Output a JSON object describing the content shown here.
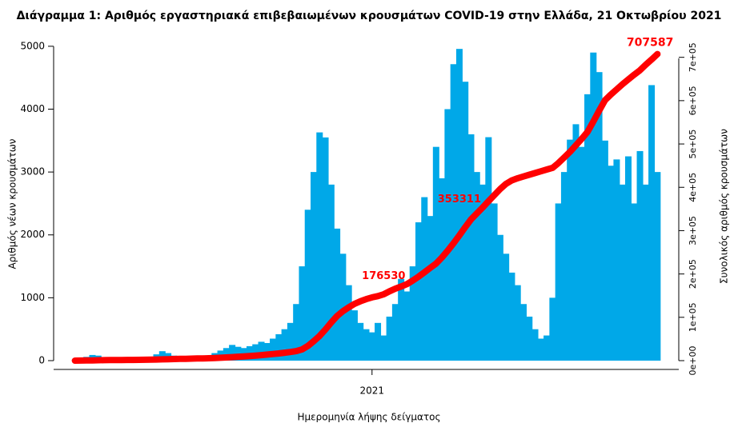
{
  "chart_data": {
    "type": "bar",
    "title": "Διάγραμμα 1: Αριθμός εργαστηριακά επιβεβαιωμένων κρουσμάτων COVID-19 στην Ελλάδα, 21 Οκτωβρίου 2021",
    "xlabel": "Ημερομηνία λήψης δείγματος",
    "ylabel": "Αριθμός νέων κρουσμάτων",
    "y2label": "Συνολικός αριθμός κρουσμάτων",
    "categories": [
      null,
      null,
      null,
      null,
      null,
      null,
      null,
      null,
      null,
      null,
      null,
      null,
      null,
      null,
      null,
      null,
      null,
      null,
      null,
      null,
      null,
      null,
      null,
      null,
      null,
      null,
      null,
      null,
      null,
      null,
      null,
      null,
      null,
      null,
      null,
      null,
      null,
      null,
      null,
      null,
      null,
      null,
      null,
      null,
      null,
      null,
      null,
      null,
      null,
      null,
      null,
      "2021",
      null,
      null,
      null,
      null,
      null,
      null,
      null,
      null,
      null,
      null,
      null,
      null,
      null,
      null,
      null,
      null,
      null,
      null,
      null,
      null,
      null,
      null,
      null,
      null,
      null,
      null,
      null,
      null,
      null,
      null,
      null,
      null,
      null,
      null,
      null,
      null,
      null,
      null,
      null,
      null,
      null,
      null,
      null,
      null,
      null,
      null,
      null,
      null,
      null
    ],
    "ylim": [
      0,
      5100
    ],
    "yticks": [
      0,
      1000,
      2000,
      3000,
      4000,
      5000
    ],
    "y2lim": [
      0,
      740000
    ],
    "y2ticks": [
      {
        "value": 0,
        "label": "0e+00"
      },
      {
        "value": 100000,
        "label": "1e+05"
      },
      {
        "value": 200000,
        "label": "2e+05"
      },
      {
        "value": 300000,
        "label": "3e+05"
      },
      {
        "value": 400000,
        "label": "4e+05"
      },
      {
        "value": 500000,
        "label": "5e+05"
      },
      {
        "value": 600000,
        "label": "6e+05"
      },
      {
        "value": 700000,
        "label": "7e+05"
      }
    ],
    "series": [
      {
        "type": "bar",
        "color": "#00a8e8",
        "values": [
          10,
          20,
          60,
          90,
          80,
          40,
          20,
          15,
          10,
          10,
          15,
          20,
          30,
          60,
          100,
          150,
          120,
          80,
          60,
          50,
          40,
          40,
          50,
          80,
          120,
          160,
          200,
          250,
          220,
          200,
          230,
          260,
          300,
          280,
          350,
          420,
          500,
          600,
          900,
          1500,
          2400,
          3000,
          3630,
          3550,
          2800,
          2100,
          1700,
          1200,
          800,
          600,
          500,
          450,
          600,
          400,
          700,
          900,
          1300,
          1100,
          1500,
          2200,
          2600,
          2300,
          3400,
          2900,
          4000,
          4715,
          4958,
          4436,
          3600,
          3000,
          2800,
          3554,
          2500,
          2000,
          1700,
          1400,
          1200,
          900,
          700,
          500,
          350,
          400,
          1000,
          2500,
          3000,
          3515,
          3760,
          3400,
          4237,
          4900,
          4589,
          3500,
          3100,
          3200,
          2800,
          3249,
          2500,
          3333,
          2800,
          4382,
          3000
        ]
      },
      {
        "type": "line",
        "axis": "y2",
        "color": "#ff0000",
        "values": [
          0,
          100,
          300,
          600,
          900,
          1100,
          1300,
          1400,
          1500,
          1600,
          1700,
          1800,
          2000,
          2200,
          2500,
          2900,
          3300,
          3700,
          4000,
          4300,
          4600,
          4900,
          5200,
          5600,
          6100,
          6700,
          7400,
          8200,
          9000,
          9800,
          10700,
          11700,
          12800,
          14000,
          15300,
          16700,
          18200,
          20000,
          22000,
          26000,
          34000,
          45000,
          57000,
          72000,
          88000,
          103000,
          114000,
          123000,
          131000,
          137000,
          142000,
          146000,
          149000,
          153000,
          160000,
          166000,
          171000,
          176530,
          185000,
          194000,
          204000,
          214000,
          224000,
          238000,
          254000,
          271000,
          289000,
          308000,
          326000,
          340000,
          353311,
          368000,
          382000,
          396000,
          408000,
          416000,
          421000,
          425000,
          429000,
          433000,
          437000,
          441000,
          445000,
          456000,
          469000,
          482000,
          497000,
          512000,
          528000,
          552000,
          577000,
          601000,
          614000,
          626000,
          638000,
          649000,
          660000,
          670000,
          683000,
          695000,
          707587
        ],
        "value_labels": [
          null,
          null,
          null,
          null,
          null,
          null,
          null,
          null,
          null,
          null,
          null,
          null,
          null,
          null,
          null,
          null,
          null,
          null,
          null,
          null,
          null,
          null,
          null,
          null,
          null,
          null,
          null,
          null,
          null,
          null,
          null,
          null,
          null,
          null,
          null,
          null,
          null,
          null,
          null,
          null,
          null,
          null,
          null,
          null,
          null,
          null,
          null,
          null,
          null,
          null,
          null,
          null,
          null,
          null,
          null,
          null,
          null,
          "176530",
          null,
          null,
          null,
          null,
          null,
          null,
          null,
          null,
          null,
          null,
          null,
          null,
          "353311",
          null,
          null,
          null,
          null,
          null,
          null,
          null,
          null,
          null,
          null,
          null,
          null,
          null,
          null,
          null,
          null,
          null,
          null,
          null,
          null,
          null,
          null,
          null,
          null,
          null,
          null,
          null,
          null,
          null,
          "707587"
        ]
      }
    ]
  }
}
